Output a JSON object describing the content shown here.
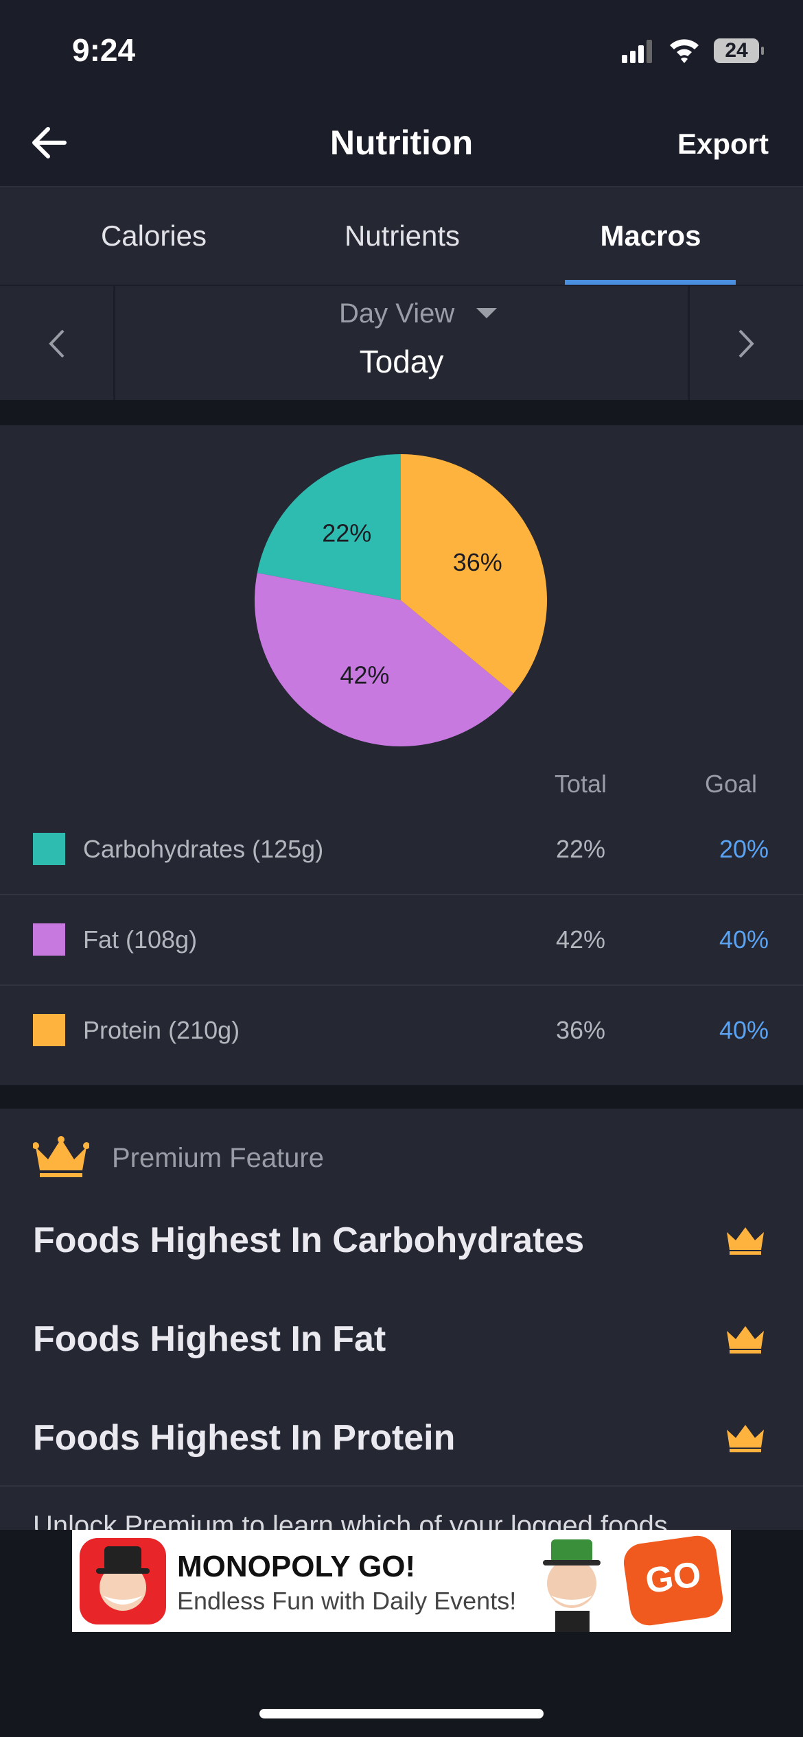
{
  "status_bar": {
    "time": "9:24",
    "battery": "24"
  },
  "header": {
    "title": "Nutrition",
    "action": "Export"
  },
  "tabs": [
    "Calories",
    "Nutrients",
    "Macros"
  ],
  "date_nav": {
    "view": "Day View",
    "date": "Today"
  },
  "chart_data": {
    "type": "pie",
    "values": [
      22,
      42,
      36
    ],
    "value_labels": [
      "22%",
      "42%",
      "36%"
    ],
    "colors": [
      "#2ebcb1",
      "#c779e0",
      "#ffb33f"
    ]
  },
  "table": {
    "header": [
      "Total",
      "Goal"
    ],
    "rows": [
      [
        "Carbohydrates (125g)",
        "22%",
        "20%"
      ],
      [
        "Fat (108g)",
        "42%",
        "40%"
      ],
      [
        "Protein (210g)",
        "36%",
        "40%"
      ]
    ]
  },
  "premium": {
    "label": "Premium Feature",
    "items": [
      "Foods Highest In Carbohydrates",
      "Foods Highest In Fat",
      "Foods Highest In Protein"
    ],
    "note": "Unlock Premium to learn which of your logged foods"
  },
  "ad": {
    "title": "MONOPOLY GO!",
    "subtitle": "Endless Fun with Daily Events!",
    "badge": "GO"
  }
}
